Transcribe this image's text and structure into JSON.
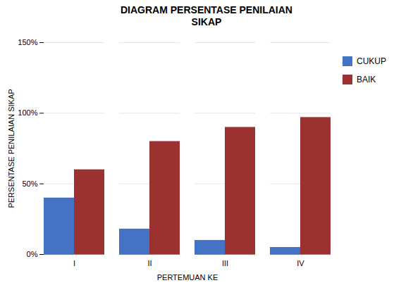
{
  "chart_data": {
    "type": "bar",
    "title": "DIAGRAM PERSENTASE PENILAIAN\nSIKAP",
    "x_label": "PERTEMUAN KE",
    "y_label": "PERSENTASE PENILAIAN SIKAP",
    "categories": [
      "I",
      "II",
      "III",
      "IV"
    ],
    "series": [
      {
        "name": "CUKUP",
        "color": "#4472C4",
        "values": [
          0.4,
          0.18,
          0.1,
          0.05
        ]
      },
      {
        "name": "BAIK",
        "color": "#9B3230",
        "values": [
          0.6,
          0.8,
          0.9,
          0.97
        ]
      }
    ],
    "ylim": [
      0,
      1.5
    ],
    "yticks": [
      {
        "value": 0,
        "label": "0%"
      },
      {
        "value": 0.5,
        "label": "50%"
      },
      {
        "value": 1.0,
        "label": "100%"
      },
      {
        "value": 1.5,
        "label": "150%"
      }
    ],
    "grid": true,
    "legend": "right"
  }
}
